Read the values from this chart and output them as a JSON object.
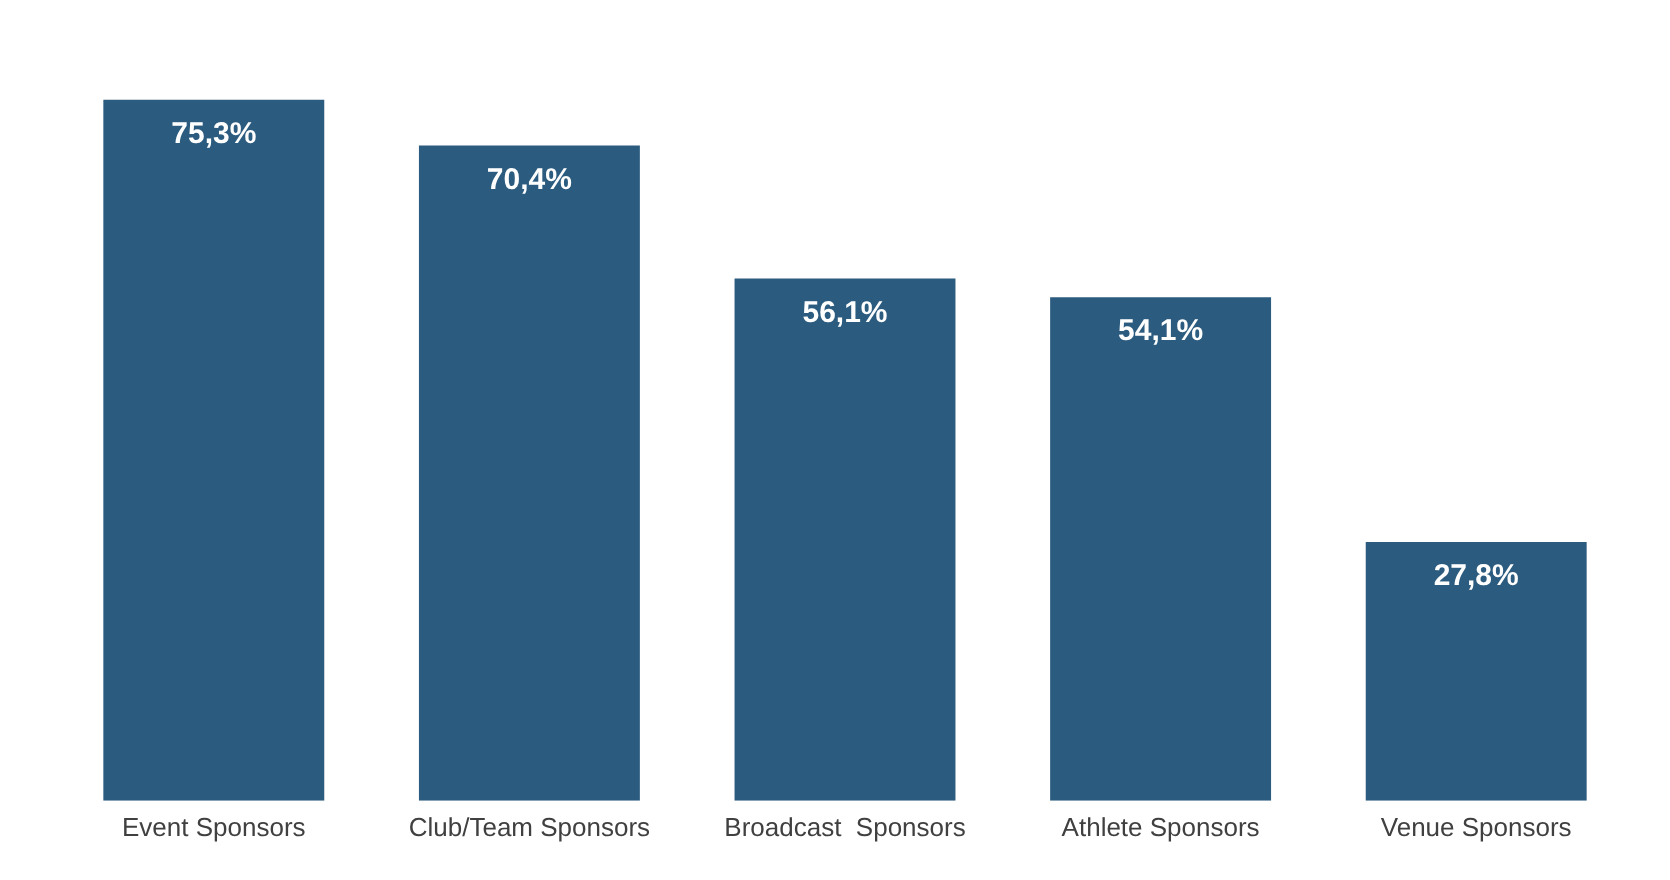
{
  "chart_data": {
    "type": "bar",
    "categories": [
      "Event Sponsors",
      "Club/Team Sponsors",
      "Broadcast  Sponsors",
      "Athlete Sponsors",
      "Venue Sponsors"
    ],
    "values": [
      75.3,
      70.4,
      56.1,
      54.1,
      27.8
    ],
    "value_labels": [
      "75,3%",
      "70,4%",
      "56,1%",
      "54,1%",
      "27,8%"
    ],
    "color": "#2b5b7e",
    "grid": false,
    "legend": false
  }
}
